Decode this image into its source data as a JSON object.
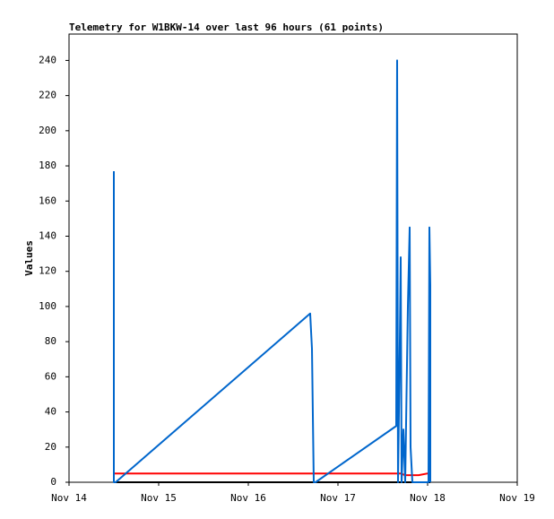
{
  "chart_data": {
    "type": "line",
    "title": "Telemetry for W1BKW-14 over last 96 hours (61 points)",
    "y_label": "Values",
    "xlim": [
      14,
      19
    ],
    "xticks": [
      {
        "value": 14,
        "label": "Nov 14"
      },
      {
        "value": 15,
        "label": "Nov 15"
      },
      {
        "value": 16,
        "label": "Nov 16"
      },
      {
        "value": 17,
        "label": "Nov 17"
      },
      {
        "value": 18,
        "label": "Nov 18"
      },
      {
        "value": 19,
        "label": "Nov 19"
      }
    ],
    "ylim": [
      0,
      255
    ],
    "yticks": [
      0,
      20,
      40,
      60,
      80,
      100,
      120,
      140,
      160,
      180,
      200,
      220,
      240
    ],
    "series": [
      {
        "color": "#000000",
        "x": [
          14.5,
          18.03
        ],
        "values": [
          0,
          0
        ]
      },
      {
        "color": "#ff0000",
        "x": [
          14.5,
          17.7,
          17.75,
          17.9,
          18.0,
          18.03
        ],
        "values": [
          5,
          5,
          4,
          4,
          5,
          5
        ]
      },
      {
        "color": "#0066cc",
        "x": [
          14.5,
          14.5,
          14.52,
          16.69,
          16.71,
          16.73,
          16.75,
          17.65,
          17.66,
          17.67,
          17.69,
          17.7,
          17.71,
          17.73,
          17.75,
          17.78,
          17.8,
          17.81,
          17.83,
          18.01,
          18.02,
          18.03,
          18.03
        ],
        "values": [
          177,
          0,
          0,
          96,
          76,
          0,
          0,
          32,
          240,
          0,
          80,
          128,
          0,
          30,
          0,
          100,
          145,
          20,
          0,
          0,
          145,
          112,
          0
        ]
      }
    ]
  }
}
